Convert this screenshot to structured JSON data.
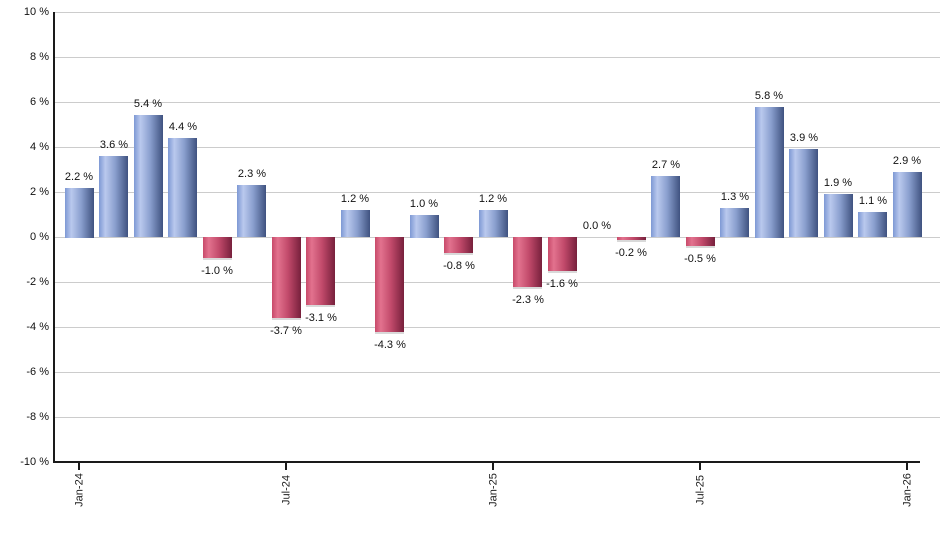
{
  "chart_data": {
    "type": "bar",
    "title": "",
    "xlabel": "",
    "ylabel": "",
    "ylim": [
      -10,
      10
    ],
    "y_tick_step": 2,
    "grid": "horizontal",
    "legend_position": "none",
    "y_tick_labels": [
      "10 %",
      "8 %",
      "6 %",
      "4 %",
      "2 %",
      "0 %",
      "-2 %",
      "-4 %",
      "-6 %",
      "-8 %",
      "-10 %"
    ],
    "values": [
      2.2,
      3.6,
      5.4,
      4.4,
      -1.0,
      2.3,
      -3.7,
      -3.1,
      1.2,
      -4.3,
      1.0,
      -0.8,
      1.2,
      -2.3,
      -1.6,
      0.0,
      -0.2,
      2.7,
      -0.5,
      1.3,
      5.8,
      3.9,
      1.9,
      1.1,
      2.9
    ],
    "value_labels": [
      "2.2 %",
      "3.6 %",
      "5.4 %",
      "4.4 %",
      "-1.0 %",
      "2.3 %",
      "-3.7 %",
      "-3.1 %",
      "1.2 %",
      "-4.3 %",
      "1.0 %",
      "-0.8 %",
      "1.2 %",
      "-2.3 %",
      "-1.6 %",
      "0.0 %",
      "-0.2 %",
      "2.7 %",
      "-0.5 %",
      "1.3 %",
      "5.8 %",
      "3.9 %",
      "1.9 %",
      "1.1 %",
      "2.9 %"
    ],
    "x_ticks": [
      {
        "index": 0,
        "label": "Jan-24"
      },
      {
        "index": 6,
        "label": "Jul-24"
      },
      {
        "index": 12,
        "label": "Jan-25"
      },
      {
        "index": 18,
        "label": "Jul-25"
      },
      {
        "index": 24,
        "label": "Jan-26"
      }
    ],
    "colors": {
      "positive_bar_gradient": [
        "#7d98d4",
        "#bac9ee",
        "#3f5280"
      ],
      "negative_bar_gradient": [
        "#c84a6a",
        "#e2728e",
        "#77203c"
      ],
      "gridline": "#cccccc",
      "axis": "#1a1a1a",
      "label_text": "#111111"
    }
  }
}
